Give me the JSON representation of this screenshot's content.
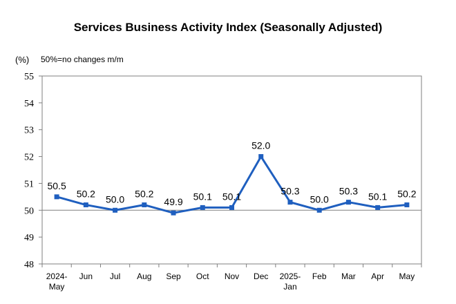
{
  "chart_data": {
    "type": "line",
    "title": "Services Business Activity Index (Seasonally Adjusted)",
    "ylabel": "(%)",
    "annotation": "50%=no changes m/m",
    "xlabel": "",
    "ylim": [
      48,
      55
    ],
    "yticks": [
      "48",
      "49",
      "50",
      "51",
      "52",
      "53",
      "54",
      "55"
    ],
    "reference_line": 50,
    "grid": false,
    "line_color": "#1f5fbf",
    "categories": [
      [
        "2024-",
        "May"
      ],
      [
        "Jun"
      ],
      [
        "Jul"
      ],
      [
        "Aug"
      ],
      [
        "Sep"
      ],
      [
        "Oct"
      ],
      [
        "Nov"
      ],
      [
        "Dec"
      ],
      [
        "2025-",
        "Jan"
      ],
      [
        "Feb"
      ],
      [
        "Mar"
      ],
      [
        "Apr"
      ],
      [
        "May"
      ]
    ],
    "values": [
      50.5,
      50.2,
      50.0,
      50.2,
      49.9,
      50.1,
      50.1,
      52.0,
      50.3,
      50.0,
      50.3,
      50.1,
      50.2
    ],
    "data_labels": [
      "50.5",
      "50.2",
      "50.0",
      "50.2",
      "49.9",
      "50.1",
      "50.1",
      "52.0",
      "50.3",
      "50.0",
      "50.3",
      "50.1",
      "50.2"
    ]
  }
}
